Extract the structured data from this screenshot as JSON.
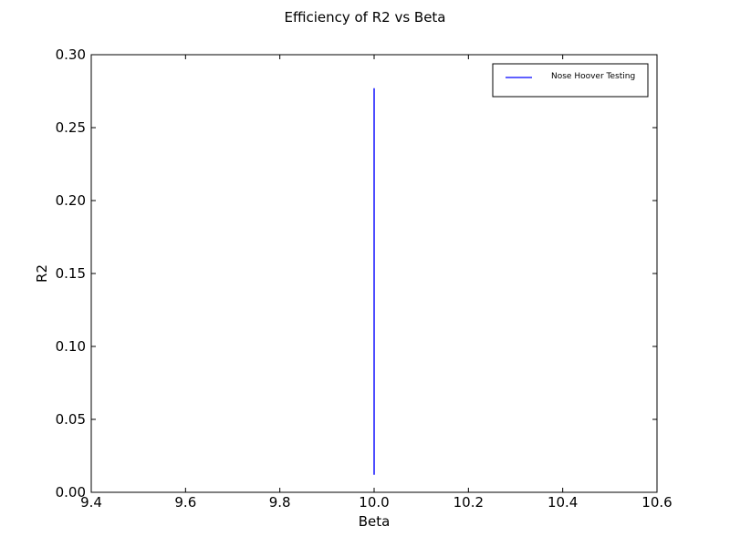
{
  "chart_data": {
    "type": "line",
    "title": "Efficiency of R2 vs Beta",
    "xlabel": "Beta",
    "ylabel": "R2",
    "xlim": [
      9.4,
      10.6
    ],
    "ylim": [
      0.0,
      0.3
    ],
    "x_ticks": [
      "9.4",
      "9.6",
      "9.8",
      "10.0",
      "10.2",
      "10.4",
      "10.6"
    ],
    "y_ticks": [
      "0.00",
      "0.05",
      "0.10",
      "0.15",
      "0.20",
      "0.25",
      "0.30"
    ],
    "x_tick_values": [
      9.4,
      9.6,
      9.8,
      10.0,
      10.2,
      10.4,
      10.6
    ],
    "y_tick_values": [
      0.0,
      0.05,
      0.1,
      0.15,
      0.2,
      0.25,
      0.3
    ],
    "grid": false,
    "legend_position": "top-right",
    "series": [
      {
        "name": "Nose Hoover Testing",
        "color": "#0000ff",
        "x": [
          10.0,
          10.0,
          10.0,
          10.0,
          10.0,
          10.0,
          10.0,
          10.0
        ],
        "y": [
          0.277,
          0.02,
          0.168,
          0.015,
          0.138,
          0.012,
          0.1,
          0.03
        ]
      }
    ]
  }
}
